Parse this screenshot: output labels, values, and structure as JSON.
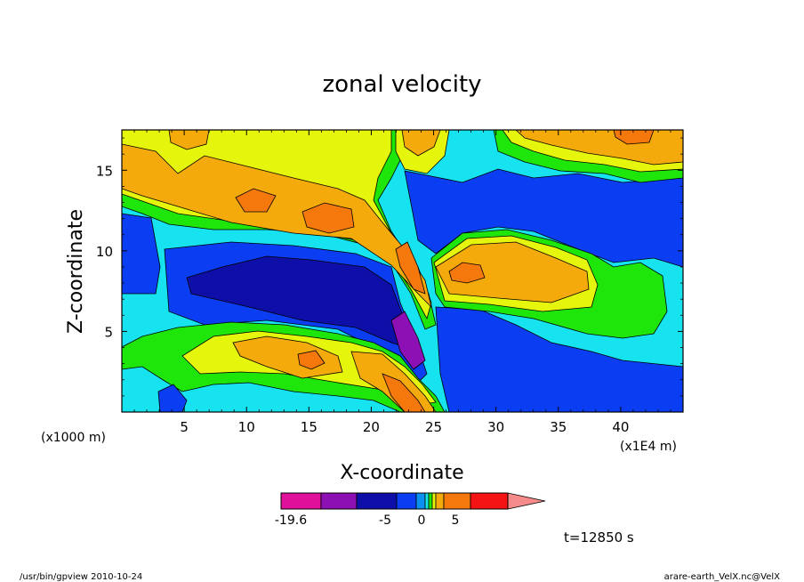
{
  "chart_data": {
    "type": "heatmap",
    "title": "zonal velocity",
    "xlabel": "X-coordinate",
    "ylabel": "Z-coordinate",
    "x_unit_left": "(x1000 m)",
    "x_unit_right": "(x1E4 m)",
    "xlim": [
      0,
      45
    ],
    "ylim": [
      0,
      17.5
    ],
    "x_ticks": [
      5,
      10,
      15,
      20,
      25,
      30,
      35,
      40
    ],
    "y_ticks": [
      5,
      10,
      15
    ],
    "colorbar": {
      "colors": [
        "#e0109a",
        "#8c10b4",
        "#0d0fa8",
        "#0b3ef2",
        "#0b90f2",
        "#14e6e6",
        "#1ee60a",
        "#e6f50c",
        "#f5aa0c",
        "#f5780c",
        "#f51414",
        "#f58a8a"
      ],
      "labels": [
        "-19.6",
        "-5",
        "0",
        "5"
      ],
      "label_values": [
        -19.6,
        -5,
        0,
        5
      ]
    },
    "fields": {
      "base": "#16e2f0",
      "deep_neg": "#0d0fa8",
      "neg": "#0b3ef2",
      "neg_strong": "#8c10b4",
      "pos_weak": "#1ee60a",
      "pos_light": "#e6f50c",
      "pos": "#f5aa0c",
      "pos_strong": "#f5780c"
    },
    "annotation": "t=12850 s",
    "footer_left": "/usr/bin/gpview  2010-10-24",
    "footer_right": "arare-earth_VelX.nc@VelX"
  }
}
